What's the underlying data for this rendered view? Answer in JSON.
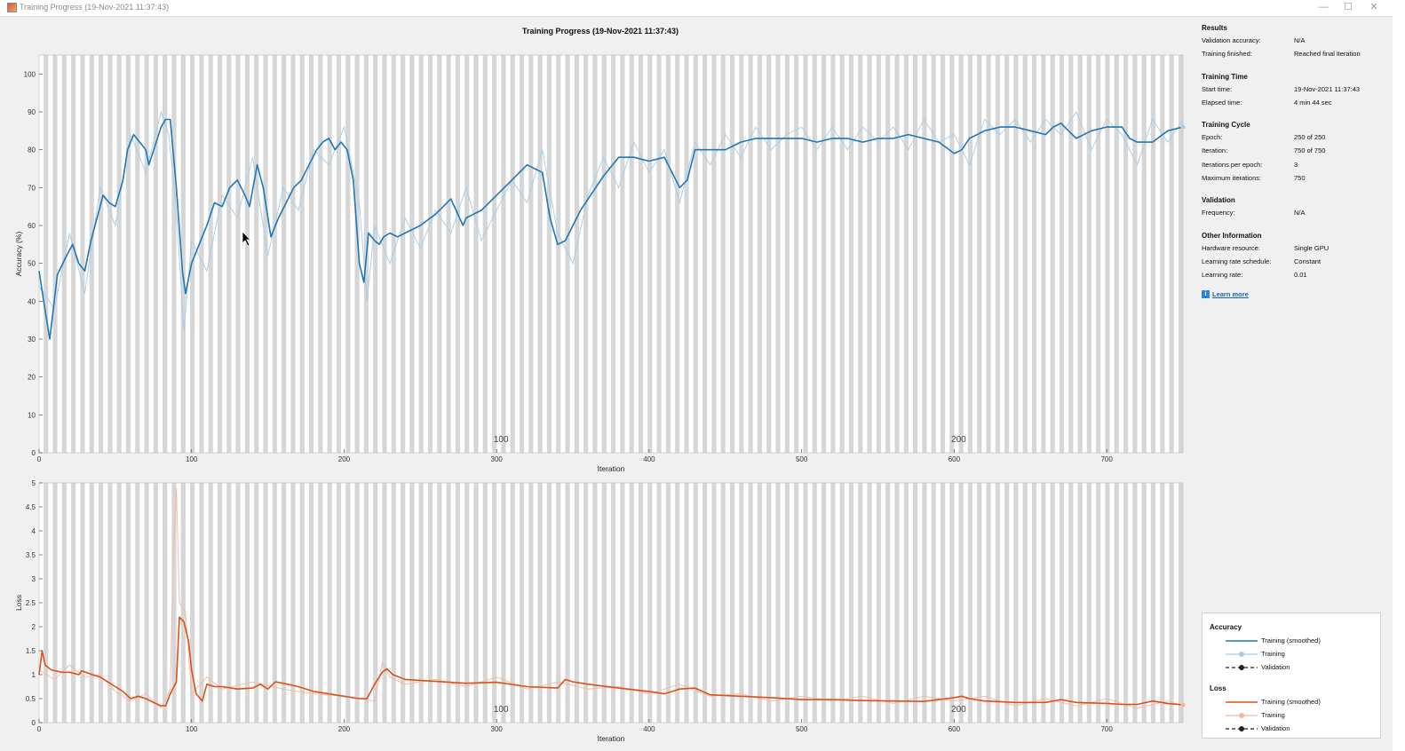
{
  "window": {
    "title": "Training Progress (19-Nov-2021 11:37:43)",
    "minimize_glyph": "—",
    "maximize_glyph": "☐",
    "close_glyph": "✕"
  },
  "figure_title": "Training Progress (19-Nov-2021 11:37:43)",
  "colors": {
    "accuracy_line": "#1f77b4",
    "accuracy_raw": "#a9cbe6",
    "loss_line": "#d95319",
    "loss_raw": "#f3b7a0",
    "epoch_band": "#d6d6d6"
  },
  "sidepanel": {
    "results": {
      "heading": "Results",
      "rows": [
        {
          "k": "Validation accuracy:",
          "v": "N/A"
        },
        {
          "k": "Training finished:",
          "v": "Reached final iteration"
        }
      ]
    },
    "training_time": {
      "heading": "Training Time",
      "rows": [
        {
          "k": "Start time:",
          "v": "19-Nov-2021 11:37:43"
        },
        {
          "k": "Elapsed time:",
          "v": "4 min 44 sec"
        }
      ]
    },
    "training_cycle": {
      "heading": "Training Cycle",
      "rows": [
        {
          "k": "Epoch:",
          "v": "250 of 250"
        },
        {
          "k": "Iteration:",
          "v": "750 of 750"
        },
        {
          "k": "Iterations per epoch:",
          "v": "3"
        },
        {
          "k": "Maximum iterations:",
          "v": "750"
        }
      ]
    },
    "validation": {
      "heading": "Validation",
      "rows": [
        {
          "k": "Frequency:",
          "v": "N/A"
        }
      ]
    },
    "other_information": {
      "heading": "Other Information",
      "rows": [
        {
          "k": "Hardware resource:",
          "v": "Single GPU"
        },
        {
          "k": "Learning rate schedule:",
          "v": "Constant"
        },
        {
          "k": "Learning rate:",
          "v": "0.01"
        }
      ]
    },
    "learn_more": "Learn more",
    "info_glyph": "i"
  },
  "legend": {
    "accuracy_heading": "Accuracy",
    "accuracy_items": [
      "Training (smoothed)",
      "Training",
      "Validation"
    ],
    "loss_heading": "Loss",
    "loss_items": [
      "Training (smoothed)",
      "Training",
      "Validation"
    ]
  },
  "chart_data": [
    {
      "type": "line",
      "title": "",
      "xlabel": "Iteration",
      "ylabel": "Accuracy (%)",
      "xlim": [
        0,
        750
      ],
      "ylim": [
        0,
        105
      ],
      "xticks": [
        0,
        100,
        200,
        300,
        400,
        500,
        600,
        700
      ],
      "yticks": [
        0,
        10,
        20,
        30,
        40,
        50,
        60,
        70,
        80,
        90,
        100
      ],
      "epoch_labels": [
        {
          "x": 300,
          "text": "100"
        },
        {
          "x": 600,
          "text": "200"
        }
      ],
      "grid": false,
      "series": [
        {
          "name": "Training (smoothed)",
          "x": [
            0,
            3,
            7,
            12,
            18,
            22,
            26,
            30,
            34,
            38,
            42,
            46,
            50,
            55,
            58,
            62,
            66,
            70,
            72,
            76,
            80,
            83,
            86,
            90,
            94,
            96,
            100,
            105,
            110,
            115,
            120,
            125,
            130,
            135,
            138,
            143,
            147,
            152,
            157,
            162,
            167,
            172,
            177,
            182,
            186,
            190,
            194,
            198,
            202,
            206,
            210,
            213,
            216,
            220,
            223,
            226,
            230,
            235,
            240,
            250,
            260,
            270,
            278,
            280,
            285,
            290,
            300,
            310,
            320,
            330,
            335,
            340,
            345,
            350,
            355,
            360,
            370,
            380,
            390,
            400,
            410,
            420,
            425,
            430,
            440,
            450,
            460,
            470,
            480,
            490,
            500,
            510,
            520,
            530,
            540,
            550,
            560,
            570,
            580,
            590,
            600,
            605,
            610,
            620,
            630,
            640,
            650,
            660,
            665,
            670,
            680,
            690,
            700,
            710,
            715,
            720,
            730,
            740,
            750
          ],
          "values": [
            48,
            40,
            30,
            47,
            52,
            55,
            50,
            48,
            56,
            62,
            68,
            66,
            65,
            72,
            80,
            84,
            82,
            80,
            76,
            81,
            86,
            88,
            88,
            70,
            48,
            42,
            50,
            55,
            60,
            66,
            65,
            70,
            72,
            68,
            65,
            76,
            70,
            57,
            62,
            66,
            70,
            72,
            76,
            80,
            82,
            83,
            80,
            82,
            80,
            72,
            50,
            45,
            58,
            56,
            55,
            57,
            58,
            57,
            58,
            60,
            63,
            67,
            60,
            62,
            63,
            64,
            68,
            72,
            76,
            74,
            62,
            55,
            56,
            60,
            64,
            67,
            73,
            78,
            78,
            77,
            78,
            70,
            72,
            80,
            80,
            80,
            82,
            83,
            83,
            83,
            83,
            82,
            83,
            83,
            82,
            83,
            83,
            84,
            83,
            82,
            79,
            80,
            83,
            85,
            86,
            86,
            85,
            84,
            86,
            87,
            83,
            85,
            86,
            86,
            83,
            82,
            82,
            85,
            86
          ]
        },
        {
          "name": "Training",
          "x": [
            0,
            10,
            20,
            30,
            40,
            50,
            60,
            70,
            80,
            85,
            90,
            95,
            100,
            110,
            120,
            130,
            140,
            150,
            160,
            170,
            180,
            190,
            200,
            210,
            215,
            220,
            230,
            240,
            250,
            260,
            270,
            280,
            290,
            300,
            310,
            320,
            330,
            340,
            350,
            360,
            370,
            380,
            390,
            400,
            410,
            420,
            430,
            440,
            450,
            460,
            470,
            480,
            490,
            500,
            510,
            520,
            530,
            540,
            550,
            560,
            570,
            580,
            590,
            600,
            610,
            620,
            630,
            640,
            650,
            660,
            670,
            680,
            690,
            700,
            710,
            720,
            730,
            740,
            750
          ],
          "values": [
            44,
            38,
            58,
            42,
            70,
            60,
            84,
            74,
            90,
            84,
            64,
            32,
            56,
            48,
            68,
            62,
            78,
            52,
            70,
            64,
            80,
            76,
            86,
            66,
            40,
            60,
            50,
            62,
            54,
            64,
            58,
            70,
            56,
            64,
            72,
            66,
            80,
            58,
            50,
            68,
            78,
            70,
            82,
            74,
            80,
            66,
            82,
            76,
            84,
            78,
            86,
            80,
            84,
            86,
            80,
            86,
            80,
            86,
            82,
            86,
            80,
            88,
            82,
            84,
            76,
            88,
            84,
            88,
            82,
            88,
            84,
            90,
            80,
            88,
            84,
            76,
            88,
            82,
            88
          ]
        }
      ]
    },
    {
      "type": "line",
      "title": "",
      "xlabel": "Iteration",
      "ylabel": "Loss",
      "xlim": [
        0,
        750
      ],
      "ylim": [
        0,
        5
      ],
      "xticks": [
        0,
        100,
        200,
        300,
        400,
        500,
        600,
        700
      ],
      "yticks": [
        0,
        0.5,
        1,
        1.5,
        2,
        2.5,
        3,
        3.5,
        4,
        4.5,
        5
      ],
      "epoch_labels": [
        {
          "x": 300,
          "text": "100"
        },
        {
          "x": 600,
          "text": "200"
        }
      ],
      "grid": false,
      "series": [
        {
          "name": "Training (smoothed)",
          "x": [
            0,
            2,
            4,
            8,
            15,
            20,
            26,
            28,
            35,
            40,
            45,
            50,
            55,
            60,
            65,
            70,
            75,
            80,
            83,
            86,
            90,
            92,
            95,
            98,
            100,
            103,
            107,
            110,
            115,
            120,
            130,
            140,
            145,
            150,
            155,
            160,
            170,
            180,
            190,
            200,
            210,
            215,
            220,
            225,
            228,
            232,
            240,
            260,
            280,
            300,
            320,
            340,
            345,
            350,
            360,
            380,
            400,
            410,
            420,
            430,
            440,
            460,
            480,
            500,
            520,
            540,
            560,
            580,
            600,
            605,
            610,
            620,
            640,
            660,
            670,
            680,
            700,
            710,
            720,
            730,
            740,
            750
          ],
          "values": [
            1.0,
            1.5,
            1.2,
            1.1,
            1.05,
            1.05,
            1.0,
            1.08,
            1.0,
            0.95,
            0.85,
            0.75,
            0.65,
            0.5,
            0.55,
            0.5,
            0.42,
            0.35,
            0.35,
            0.6,
            0.85,
            2.2,
            2.1,
            1.7,
            1.1,
            0.6,
            0.45,
            0.8,
            0.75,
            0.75,
            0.7,
            0.72,
            0.8,
            0.7,
            0.85,
            0.82,
            0.75,
            0.65,
            0.6,
            0.55,
            0.5,
            0.5,
            0.8,
            1.05,
            1.12,
            1.0,
            0.9,
            0.86,
            0.82,
            0.84,
            0.75,
            0.72,
            0.9,
            0.85,
            0.8,
            0.72,
            0.65,
            0.6,
            0.7,
            0.72,
            0.58,
            0.55,
            0.52,
            0.48,
            0.48,
            0.46,
            0.45,
            0.44,
            0.52,
            0.55,
            0.5,
            0.45,
            0.42,
            0.42,
            0.48,
            0.42,
            0.4,
            0.38,
            0.38,
            0.45,
            0.4,
            0.37
          ]
        },
        {
          "name": "Training",
          "x": [
            0,
            10,
            20,
            30,
            40,
            50,
            60,
            70,
            80,
            86,
            88,
            90,
            92,
            96,
            100,
            110,
            120,
            140,
            160,
            180,
            200,
            220,
            225,
            230,
            240,
            260,
            280,
            300,
            320,
            340,
            360,
            380,
            400,
            420,
            440,
            460,
            480,
            500,
            520,
            540,
            560,
            580,
            600,
            620,
            640,
            660,
            680,
            700,
            720,
            740,
            750
          ],
          "values": [
            1.1,
            0.9,
            1.2,
            0.95,
            1.0,
            0.65,
            0.45,
            0.6,
            0.3,
            0.7,
            3.5,
            4.9,
            2.5,
            2.3,
            0.6,
            0.95,
            0.7,
            0.85,
            0.7,
            0.6,
            0.55,
            0.45,
            1.25,
            0.95,
            0.8,
            0.9,
            0.75,
            0.95,
            0.7,
            0.85,
            0.7,
            0.75,
            0.6,
            0.8,
            0.55,
            0.6,
            0.45,
            0.55,
            0.45,
            0.55,
            0.4,
            0.55,
            0.45,
            0.55,
            0.35,
            0.5,
            0.35,
            0.5,
            0.3,
            0.45,
            0.35
          ]
        }
      ]
    }
  ]
}
